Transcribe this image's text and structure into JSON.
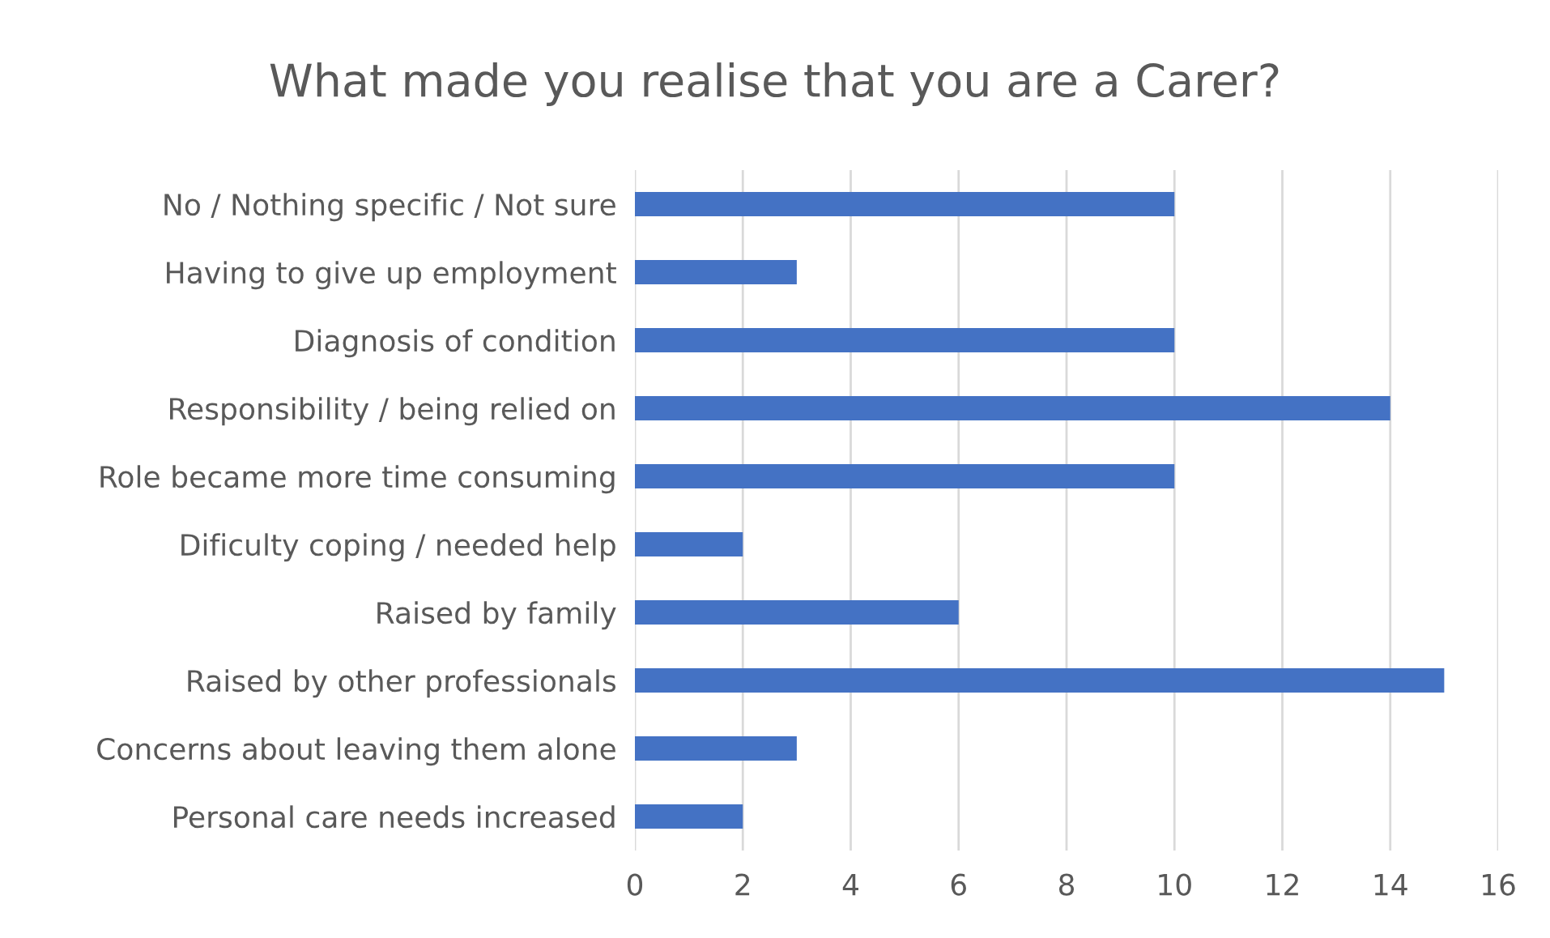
{
  "chart_data": {
    "type": "bar",
    "orientation": "horizontal",
    "title": "What made you realise that you are a Carer?",
    "categories": [
      "No / Nothing specific / Not sure",
      "Having to give up employment",
      "Diagnosis of condition",
      "Responsibility / being relied on",
      "Role became more time consuming",
      "Dificulty coping / needed help",
      "Raised by family",
      "Raised by other professionals",
      "Concerns about leaving them alone",
      "Personal care needs increased"
    ],
    "values": [
      10,
      3,
      10,
      14,
      10,
      2,
      6,
      15,
      3,
      2
    ],
    "color": "#4472c4",
    "xlim": [
      0,
      16
    ],
    "xticks": [
      0,
      2,
      4,
      6,
      8,
      10,
      12,
      14,
      16
    ],
    "grid": "x"
  }
}
